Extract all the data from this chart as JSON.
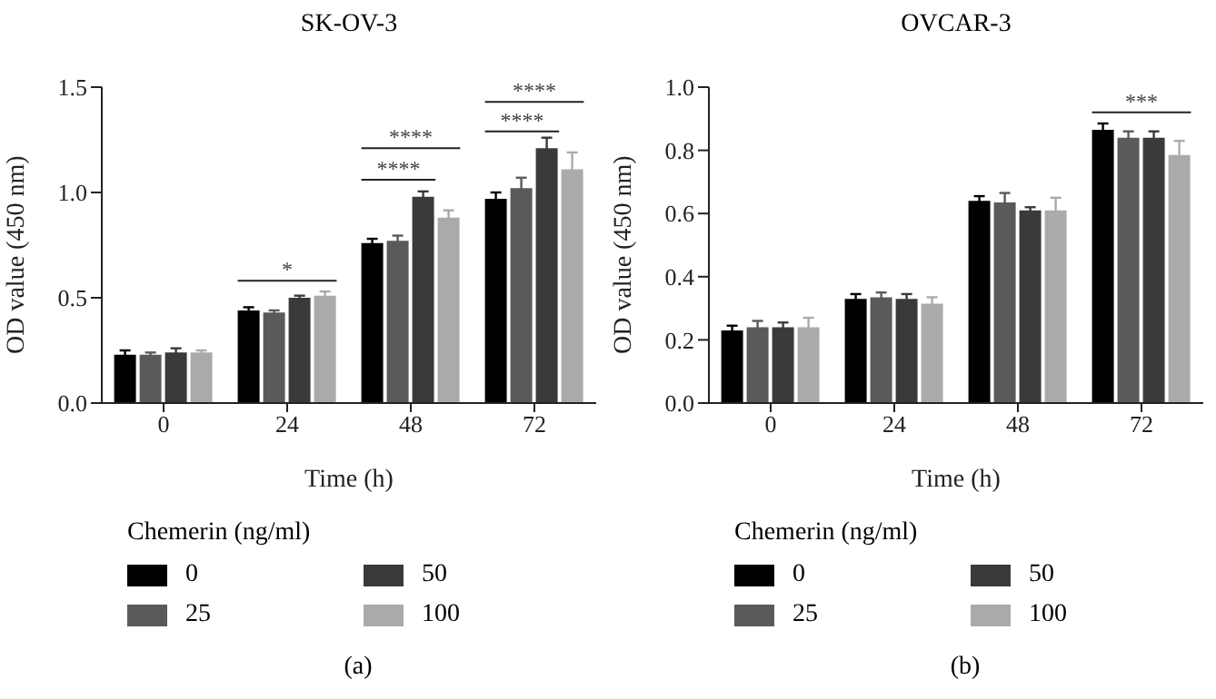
{
  "chart_data": [
    {
      "type": "bar",
      "title": "SK-OV-3",
      "xlabel": "Time (h)",
      "ylabel": "OD value (450 nm)",
      "legend_title": "Chemerin (ng/ml)",
      "legend": "bottom",
      "categories": [
        "0",
        "24",
        "48",
        "72"
      ],
      "ylim": [
        0,
        1.5
      ],
      "yticks": [
        {
          "value": 0,
          "label": "0.0"
        },
        {
          "value": 0.5,
          "label": "0.5"
        },
        {
          "value": 1,
          "label": "1.0"
        },
        {
          "value": 1.5,
          "label": "1.5"
        }
      ],
      "series": [
        {
          "name": "0",
          "color": "#000000",
          "values": [
            0.23,
            0.44,
            0.76,
            0.97
          ],
          "errors": [
            0.02,
            0.015,
            0.02,
            0.03
          ]
        },
        {
          "name": "25",
          "color": "#5a5a5a",
          "values": [
            0.23,
            0.43,
            0.77,
            1.02
          ],
          "errors": [
            0.01,
            0.01,
            0.025,
            0.05
          ]
        },
        {
          "name": "50",
          "color": "#3a3a3a",
          "values": [
            0.24,
            0.5,
            0.98,
            1.21
          ],
          "errors": [
            0.02,
            0.01,
            0.025,
            0.05
          ]
        },
        {
          "name": "100",
          "color": "#aaaaaa",
          "values": [
            0.24,
            0.51,
            0.88,
            1.11
          ],
          "errors": [
            0.01,
            0.02,
            0.035,
            0.08
          ]
        }
      ],
      "annotations": [
        "*",
        "****",
        "****",
        "****",
        "****",
        "(a)"
      ]
    },
    {
      "type": "bar",
      "title": "OVCAR-3",
      "xlabel": "Time (h)",
      "ylabel": "OD value (450 nm)",
      "legend_title": "Chemerin (ng/ml)",
      "legend": "bottom",
      "categories": [
        "0",
        "24",
        "48",
        "72"
      ],
      "ylim": [
        0,
        1
      ],
      "yticks": [
        {
          "value": 0,
          "label": "0.0"
        },
        {
          "value": 0.2,
          "label": "0.2"
        },
        {
          "value": 0.4,
          "label": "0.4"
        },
        {
          "value": 0.6,
          "label": "0.6"
        },
        {
          "value": 0.8,
          "label": "0.8"
        },
        {
          "value": 1,
          "label": "1.0"
        }
      ],
      "series": [
        {
          "name": "0",
          "color": "#000000",
          "values": [
            0.23,
            0.33,
            0.64,
            0.865
          ],
          "errors": [
            0.015,
            0.015,
            0.015,
            0.02
          ]
        },
        {
          "name": "25",
          "color": "#5a5a5a",
          "values": [
            0.24,
            0.335,
            0.635,
            0.84
          ],
          "errors": [
            0.02,
            0.015,
            0.03,
            0.02
          ]
        },
        {
          "name": "50",
          "color": "#3a3a3a",
          "values": [
            0.24,
            0.33,
            0.61,
            0.84
          ],
          "errors": [
            0.015,
            0.015,
            0.01,
            0.02
          ]
        },
        {
          "name": "100",
          "color": "#aaaaaa",
          "values": [
            0.24,
            0.315,
            0.61,
            0.785
          ],
          "errors": [
            0.03,
            0.02,
            0.04,
            0.045
          ]
        }
      ],
      "annotations": [
        "***",
        "(b)"
      ]
    }
  ]
}
